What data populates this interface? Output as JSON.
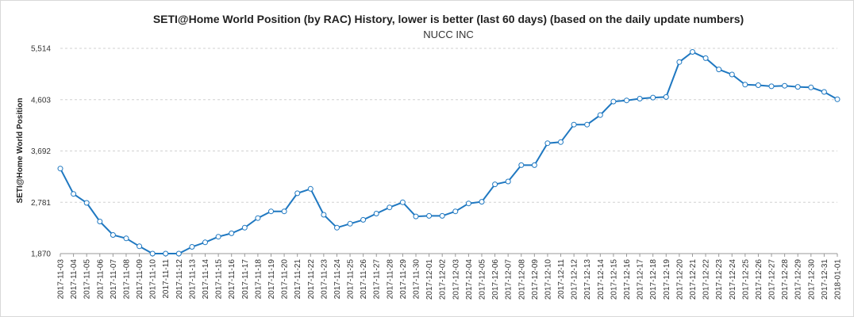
{
  "chart_data": {
    "type": "line",
    "title": "SETI@Home World Position (by RAC) History, lower is better (last 60 days) (based on the daily update numbers)",
    "subtitle": "NUCC INC",
    "xlabel": "",
    "ylabel": "SETI@Home World Position",
    "ylim": [
      1870,
      5514
    ],
    "yticks": [
      "1,870",
      "2,781",
      "3,692",
      "4,603",
      "5,514"
    ],
    "ytick_values": [
      1870,
      2781,
      3692,
      4603,
      5514
    ],
    "grid": "horizontal",
    "line_color": "#1f78c1",
    "x": [
      "2017-11-03",
      "2017-11-04",
      "2017-11-05",
      "2017-11-06",
      "2017-11-07",
      "2017-11-08",
      "2017-11-09",
      "2017-11-10",
      "2017-11-11",
      "2017-11-12",
      "2017-11-13",
      "2017-11-14",
      "2017-11-15",
      "2017-11-16",
      "2017-11-17",
      "2017-11-18",
      "2017-11-19",
      "2017-11-20",
      "2017-11-21",
      "2017-11-22",
      "2017-11-23",
      "2017-11-24",
      "2017-11-25",
      "2017-11-26",
      "2017-11-27",
      "2017-11-28",
      "2017-11-29",
      "2017-11-30",
      "2017-12-01",
      "2017-12-02",
      "2017-12-03",
      "2017-12-04",
      "2017-12-05",
      "2017-12-06",
      "2017-12-07",
      "2017-12-08",
      "2017-12-09",
      "2017-12-10",
      "2017-12-11",
      "2017-12-12",
      "2017-12-13",
      "2017-12-14",
      "2017-12-15",
      "2017-12-16",
      "2017-12-17",
      "2017-12-18",
      "2017-12-19",
      "2017-12-20",
      "2017-12-21",
      "2017-12-22",
      "2017-12-23",
      "2017-12-24",
      "2017-12-25",
      "2017-12-26",
      "2017-12-27",
      "2017-12-28",
      "2017-12-29",
      "2017-12-30",
      "2017-12-31",
      "2018-01-01"
    ],
    "series": [
      {
        "values": [
          3380,
          2930,
          2770,
          2440,
          2200,
          2140,
          2000,
          1870,
          1870,
          1870,
          1990,
          2070,
          2170,
          2230,
          2330,
          2500,
          2620,
          2620,
          2940,
          3020,
          2560,
          2330,
          2400,
          2470,
          2580,
          2690,
          2780,
          2530,
          2540,
          2540,
          2620,
          2760,
          2790,
          3100,
          3150,
          3440,
          3440,
          3830,
          3850,
          4160,
          4160,
          4330,
          4570,
          4590,
          4620,
          4640,
          4650,
          5270,
          5450,
          5340,
          5140,
          5050,
          4870,
          4860,
          4840,
          4850,
          4830,
          4820,
          4740,
          4610
        ]
      }
    ]
  }
}
